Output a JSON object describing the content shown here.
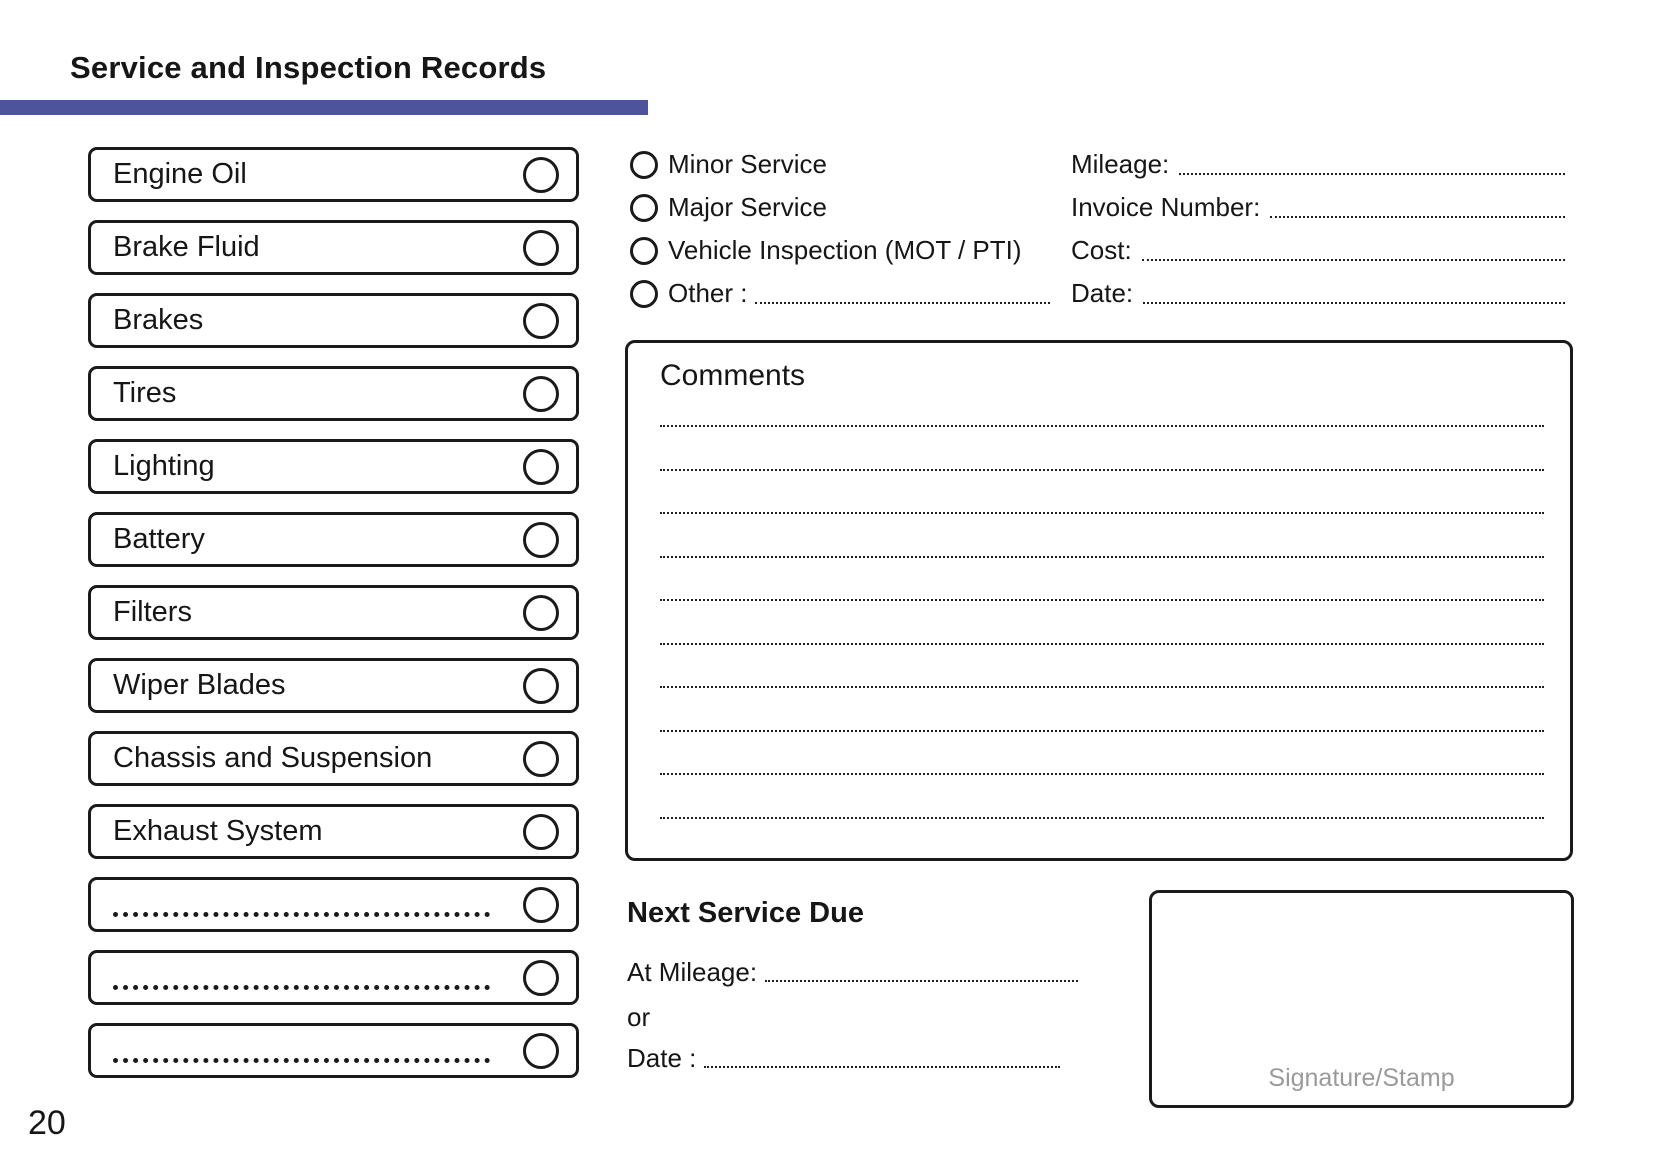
{
  "page": {
    "title": "Service and Inspection Records",
    "page_number": "20",
    "accent_color": "#4d5499"
  },
  "checklist": {
    "items": [
      {
        "label": "Engine Oil",
        "blank": false
      },
      {
        "label": "Brake Fluid",
        "blank": false
      },
      {
        "label": "Brakes",
        "blank": false
      },
      {
        "label": "Tires",
        "blank": false
      },
      {
        "label": "Lighting",
        "blank": false
      },
      {
        "label": "Battery",
        "blank": false
      },
      {
        "label": "Filters",
        "blank": false
      },
      {
        "label": "Wiper Blades",
        "blank": false
      },
      {
        "label": "Chassis and Suspension",
        "blank": false
      },
      {
        "label": "Exhaust System",
        "blank": false
      },
      {
        "label": "",
        "blank": true
      },
      {
        "label": "",
        "blank": true
      },
      {
        "label": "",
        "blank": true
      }
    ]
  },
  "service_type": {
    "options": [
      {
        "label": "Minor Service",
        "has_write_in_line": false
      },
      {
        "label": "Major Service",
        "has_write_in_line": false
      },
      {
        "label": "Vehicle Inspection (MOT / PTI)",
        "has_write_in_line": false
      },
      {
        "label": "Other :",
        "has_write_in_line": true
      }
    ]
  },
  "record_fields": [
    {
      "label": "Mileage:"
    },
    {
      "label": "Invoice Number:"
    },
    {
      "label": "Cost:"
    },
    {
      "label": "Date:"
    }
  ],
  "comments": {
    "heading": "Comments",
    "blank_line_count": 10
  },
  "next_service_due": {
    "heading": "Next Service Due",
    "at_mileage_label": "At Mileage:",
    "or_label": "or",
    "date_label": "Date :"
  },
  "signature": {
    "placeholder": "Signature/Stamp"
  }
}
